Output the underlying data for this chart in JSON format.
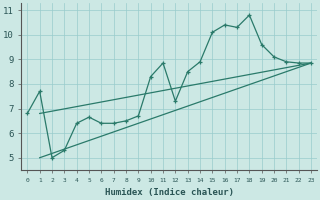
{
  "xlabel": "Humidex (Indice chaleur)",
  "bg_color": "#cce8e4",
  "grid_color": "#99cccc",
  "line_color": "#2a7a6a",
  "xlim": [
    -0.5,
    23.5
  ],
  "ylim": [
    4.5,
    11.3
  ],
  "xticks": [
    0,
    1,
    2,
    3,
    4,
    5,
    6,
    7,
    8,
    9,
    10,
    11,
    12,
    13,
    14,
    15,
    16,
    17,
    18,
    19,
    20,
    21,
    22,
    23
  ],
  "yticks": [
    5,
    6,
    7,
    8,
    9,
    10,
    11
  ],
  "main_x": [
    0,
    1,
    2,
    3,
    4,
    5,
    6,
    7,
    8,
    9,
    10,
    11,
    12,
    13,
    14,
    15,
    16,
    17,
    18,
    19,
    20,
    21,
    22,
    23
  ],
  "main_y": [
    6.8,
    7.7,
    5.0,
    5.3,
    6.4,
    6.65,
    6.4,
    6.4,
    6.5,
    6.7,
    8.3,
    8.85,
    7.3,
    8.5,
    8.9,
    10.1,
    10.4,
    10.3,
    10.8,
    9.6,
    9.1,
    8.9,
    8.85,
    8.85
  ],
  "line2_x": [
    1,
    23
  ],
  "line2_y": [
    5.0,
    8.85
  ],
  "line3_x": [
    1,
    23
  ],
  "line3_y": [
    6.8,
    8.85
  ]
}
